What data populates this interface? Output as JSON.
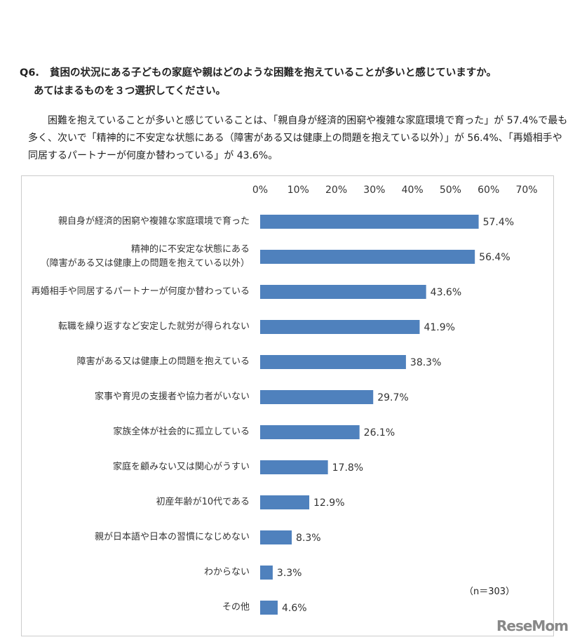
{
  "question": {
    "number": "Q6.",
    "lines": [
      "貧困の状況にある子どもの家庭や親はどのような困難を抱えていることが多いと感じていますか。",
      "あてはまるものを３つ選択してください。"
    ]
  },
  "description": "困難を抱えていることが多いと感じていることは、「親自身が経済的困窮や複雑な家庭環境で育った」が 57.4%で最も多く、次いで「精神的に不安定な状態にある（障害がある又は健康上の問題を抱えている以外）」が 56.4%、「再婚相手や同居するパートナーが何度か替わっている」が 43.6%。",
  "watermark": "ReseMom",
  "chart_data": {
    "type": "barh",
    "note": "（n＝303）",
    "color": "#4f81bd",
    "categories": [
      "親自身が経済的困窮や複雑な家庭環境で育った",
      "精神的に不安定な状態にある\n（障害がある又は健康上の問題を抱えている以外）",
      "再婚相手や同居するパートナーが何度か替わっている",
      "転職を繰り返すなど安定した就労が得られない",
      "障害がある又は健康上の問題を抱えている",
      "家事や育児の支援者や協力者がいない",
      "家族全体が社会的に孤立している",
      "家庭を顧みない又は関心がうすい",
      "初産年齢が10代である",
      "親が日本語や日本の習慣になじめない",
      "わからない",
      "その他"
    ],
    "values": [
      57.4,
      56.4,
      43.6,
      41.9,
      38.3,
      29.7,
      26.1,
      17.8,
      12.9,
      8.3,
      3.3,
      4.6
    ],
    "value_labels": [
      "57.4%",
      "56.4%",
      "43.6%",
      "41.9%",
      "38.3%",
      "29.7%",
      "26.1%",
      "17.8%",
      "12.9%",
      "8.3%",
      "3.3%",
      "4.6%"
    ],
    "xlim": [
      0,
      70
    ],
    "xticks": [
      {
        "value": 0,
        "label": "0%"
      },
      {
        "value": 10,
        "label": "10%"
      },
      {
        "value": 20,
        "label": "20%"
      },
      {
        "value": 30,
        "label": "30%"
      },
      {
        "value": 40,
        "label": "40%"
      },
      {
        "value": 50,
        "label": "50%"
      },
      {
        "value": 60,
        "label": "60%"
      },
      {
        "value": 70,
        "label": "70%"
      }
    ],
    "grid": false
  }
}
